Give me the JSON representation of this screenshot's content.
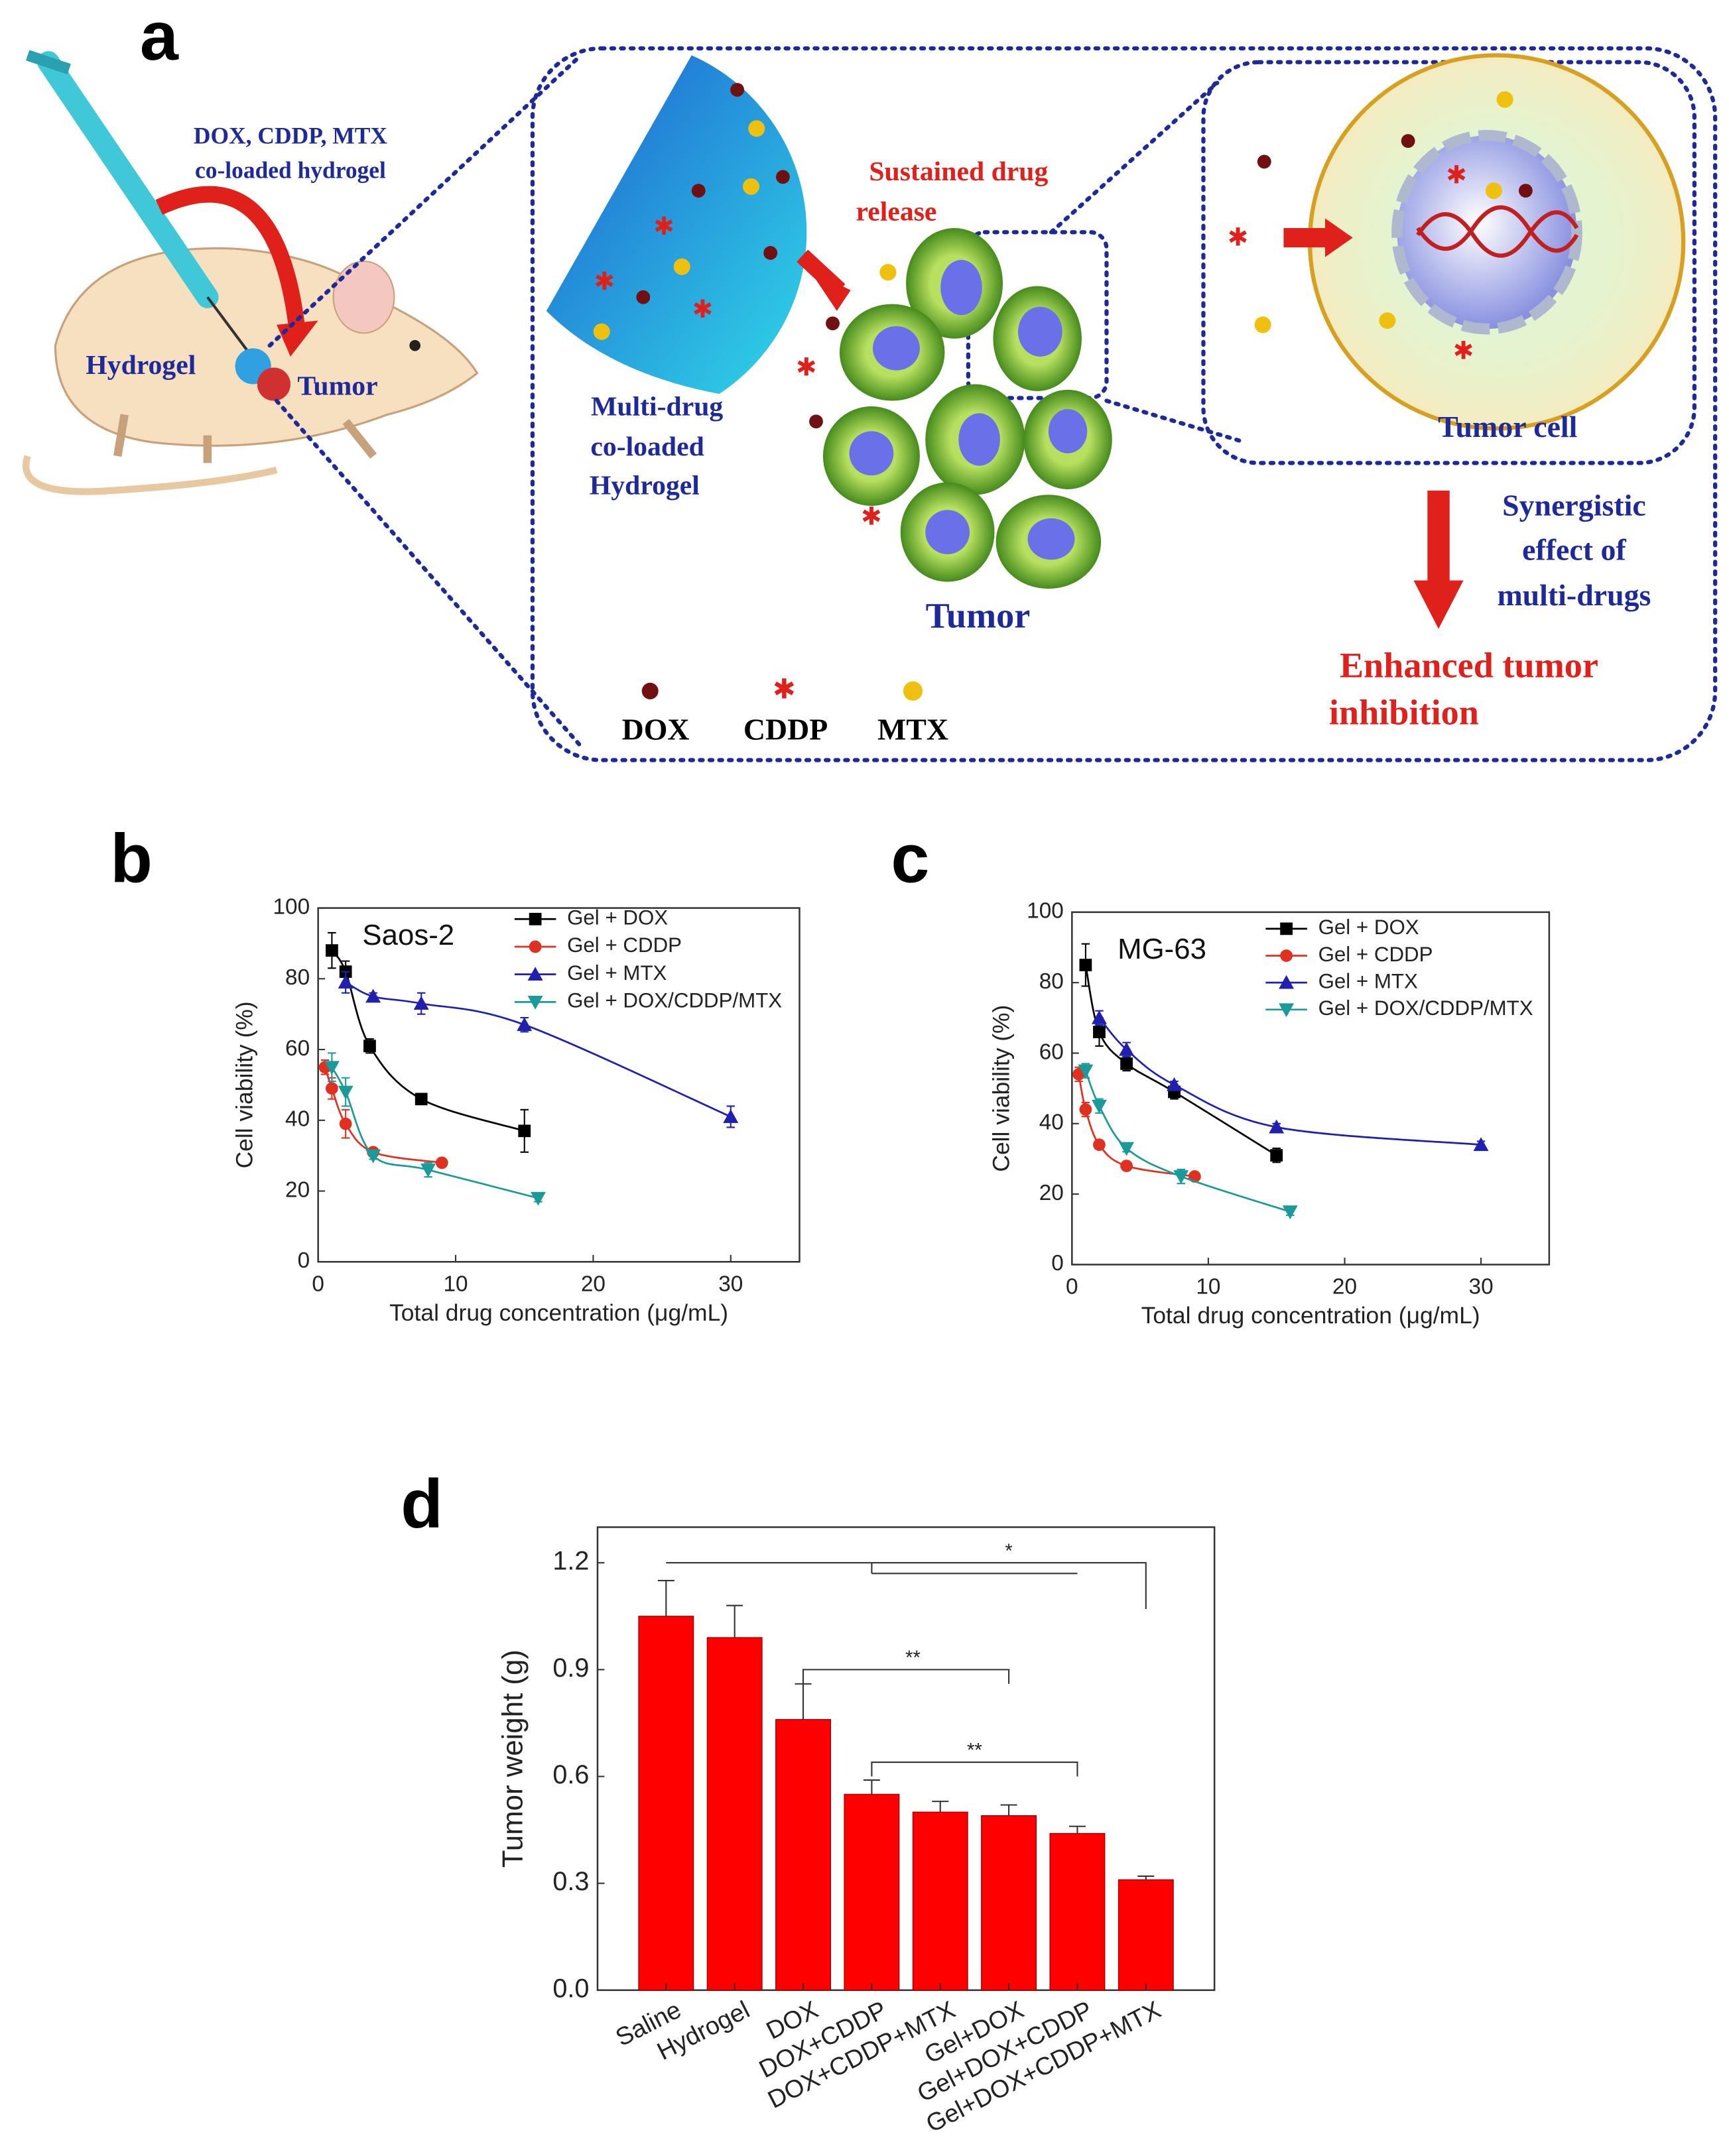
{
  "diagram": {
    "label": "a",
    "injection_label": [
      "DOX, CDDP, MTX",
      "co-loaded hydrogel"
    ],
    "hydrogel_site": "Hydrogel",
    "tumor_site": "Tumor",
    "release_label": [
      "Sustained drug",
      "release"
    ],
    "gel_label": [
      "Multi-drug",
      "co-loaded",
      "Hydrogel"
    ],
    "tumor_label": "Tumor",
    "cell_label": "Tumor cell",
    "synergy_label": [
      "Synergistic",
      "effect of",
      "multi-drugs"
    ],
    "outcome_label": [
      "Enhanced tumor",
      "inhibition"
    ],
    "legend": [
      "DOX",
      "CDDP",
      "MTX"
    ]
  },
  "chart_data": [
    {
      "type": "line",
      "panel": "b",
      "title": "Saos-2",
      "x_label": "Total drug concentration (μg/mL)",
      "y_label": "Cell viability (%)",
      "xlim": [
        0,
        35
      ],
      "ylim": [
        0,
        100
      ],
      "xticks": [
        0,
        10,
        20,
        30
      ],
      "yticks": [
        0,
        20,
        40,
        60,
        80,
        100
      ],
      "series": [
        {
          "name": "Gel + DOX",
          "color": "#000000",
          "marker": "square",
          "x": [
            1,
            2,
            3.75,
            7.5,
            15
          ],
          "values": [
            88,
            82,
            61,
            46,
            37
          ],
          "errors": [
            5,
            3,
            2,
            1,
            6
          ]
        },
        {
          "name": "Gel + CDDP",
          "color": "#e03020",
          "marker": "circle",
          "x": [
            0.5,
            1,
            2,
            4,
            9
          ],
          "values": [
            55,
            49,
            39,
            31,
            28
          ],
          "errors": [
            2,
            3,
            4,
            1,
            1
          ]
        },
        {
          "name": "Gel + MTX",
          "color": "#2020b0",
          "marker": "triangle",
          "x": [
            2,
            4,
            7.5,
            15,
            30
          ],
          "values": [
            79,
            75,
            73,
            67,
            41
          ],
          "errors": [
            3,
            1,
            3,
            2,
            3
          ]
        },
        {
          "name": "Gel + DOX/CDDP/MTX",
          "color": "#1a9a9a",
          "marker": "down-triangle",
          "x": [
            1,
            2,
            4,
            8,
            16
          ],
          "values": [
            55,
            48,
            30,
            26,
            18
          ],
          "errors": [
            4,
            4,
            1,
            2,
            1
          ]
        }
      ]
    },
    {
      "type": "line",
      "panel": "c",
      "title": "MG-63",
      "x_label": "Total drug concentration (μg/mL)",
      "y_label": "Cell viability (%)",
      "xlim": [
        0,
        35
      ],
      "ylim": [
        0,
        100
      ],
      "xticks": [
        0,
        10,
        20,
        30
      ],
      "yticks": [
        0,
        20,
        40,
        60,
        80,
        100
      ],
      "series": [
        {
          "name": "Gel + DOX",
          "color": "#000000",
          "marker": "square",
          "x": [
            1,
            2,
            4,
            7.5,
            15
          ],
          "values": [
            85,
            66,
            57,
            49,
            31
          ],
          "errors": [
            6,
            4,
            2,
            2,
            2
          ]
        },
        {
          "name": "Gel + CDDP",
          "color": "#e03020",
          "marker": "circle",
          "x": [
            0.5,
            1,
            2,
            4,
            9
          ],
          "values": [
            54,
            44,
            34,
            28,
            25
          ],
          "errors": [
            2,
            2,
            1,
            1,
            1
          ]
        },
        {
          "name": "Gel + MTX",
          "color": "#2020b0",
          "marker": "triangle",
          "x": [
            2,
            4,
            7.5,
            15,
            30
          ],
          "values": [
            70,
            61,
            51,
            39,
            34
          ],
          "errors": [
            2,
            2,
            1,
            1,
            1
          ]
        },
        {
          "name": "Gel + DOX/CDDP/MTX",
          "color": "#1a9a9a",
          "marker": "down-triangle",
          "x": [
            1,
            2,
            4,
            8,
            16
          ],
          "values": [
            55,
            45,
            33,
            25,
            15
          ],
          "errors": [
            2,
            2,
            1,
            2,
            1
          ]
        }
      ]
    },
    {
      "type": "bar",
      "panel": "d",
      "y_label": "Tumor weight (g)",
      "categories": [
        "Saline",
        "Hydrogel",
        "DOX",
        "DOX+CDDP",
        "DOX+CDDP+MTX",
        "Gel+DOX",
        "Gel+DOX+CDDP",
        "Gel+DOX+CDDP+MTX"
      ],
      "values": [
        1.05,
        0.99,
        0.76,
        0.55,
        0.5,
        0.49,
        0.44,
        0.31
      ],
      "errors": [
        0.1,
        0.09,
        0.1,
        0.04,
        0.03,
        0.03,
        0.02,
        0.01
      ],
      "color": "#ff0000",
      "ylim": [
        0,
        1.3
      ],
      "yticks": [
        {
          "value": 0,
          "label": "0.0"
        },
        {
          "value": 0.3,
          "label": "0.3"
        },
        {
          "value": 0.6,
          "label": "0.6"
        },
        {
          "value": 0.9,
          "label": "0.9"
        },
        {
          "value": 1.2,
          "label": "1.2"
        }
      ],
      "annotations": [
        "*",
        "**",
        "**"
      ]
    }
  ]
}
